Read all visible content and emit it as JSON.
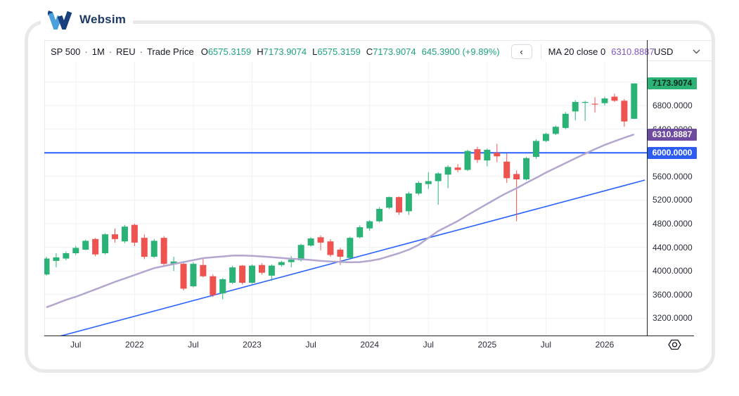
{
  "logo": {
    "text": "Websim"
  },
  "header": {
    "symbol": "SP 500",
    "separator": "·",
    "interval": "1M",
    "source": "REU",
    "price_type": "Trade Price",
    "o_label": "O",
    "o_value": "6575.3159",
    "h_label": "H",
    "h_value": "7173.9074",
    "l_label": "L",
    "l_value": "6575.3159",
    "c_label": "C",
    "c_value": "7173.9074",
    "change": "645.3900 (+9.89%)",
    "nav_button": "‹",
    "ma_label": "MA 20 close 0",
    "ma_value": "6310.8887"
  },
  "price_axis": {
    "currency": "USD",
    "ticks": [
      "6800.0000",
      "6400.0000",
      "6000.0000",
      "5600.0000",
      "5200.0000",
      "4800.0000",
      "4400.0000",
      "4000.0000",
      "3600.0000",
      "3200.0000"
    ],
    "badges": {
      "last": "7173.9074",
      "ma": "6310.8887",
      "level": "6000.0000"
    }
  },
  "time_axis": {
    "labels": [
      "Jul",
      "2022",
      "Jul",
      "2023",
      "Jul",
      "2024",
      "Jul",
      "2025",
      "Jul",
      "2026"
    ]
  },
  "colors": {
    "up": "#2bb377",
    "down": "#ef5350",
    "ma_line": "#b3a6cf",
    "ma_text": "#7e57c2",
    "blue_line": "#2962ff",
    "grid": "#eef1f6",
    "accent_badge_last": "#2bb377",
    "accent_badge_ma": "#6e4b9f",
    "accent_badge_level": "#2d5cf0"
  },
  "chart_data": {
    "type": "candlestick",
    "title": "SP 500 · 1M · REU · Trade Price with MA 20",
    "interval": "1M",
    "x_start": "2021-04",
    "x_end": "2026-04",
    "ylim": [
      3000,
      7400
    ],
    "grid": true,
    "price_gridlines": [
      3200,
      3600,
      4000,
      4400,
      4800,
      5200,
      5600,
      6000,
      6400,
      6800,
      7200
    ],
    "time_tick_indices": [
      3,
      9,
      15,
      21,
      27,
      33,
      39,
      45,
      51,
      57
    ],
    "time_tick_labels": [
      "Jul",
      "2022",
      "Jul",
      "2023",
      "Jul",
      "2024",
      "Jul",
      "2025",
      "Jul",
      "2026"
    ],
    "horizontal_level": 6000,
    "trendline": {
      "from_index": 0.3,
      "from_price": 2848,
      "to_index": 61.1,
      "to_price": 5538
    },
    "ma20": [
      3384,
      3447,
      3510,
      3562,
      3625,
      3688,
      3752,
      3815,
      3872,
      3931,
      3990,
      4048,
      4083,
      4117,
      4150,
      4183,
      4217,
      4231,
      4245,
      4260,
      4262,
      4255,
      4245,
      4233,
      4220,
      4206,
      4199,
      4186,
      4170,
      4160,
      4152,
      4146,
      4150,
      4170,
      4200,
      4250,
      4300,
      4360,
      4440,
      4560,
      4675,
      4760,
      4845,
      4945,
      5040,
      5135,
      5230,
      5320,
      5400,
      5490,
      5575,
      5665,
      5745,
      5825,
      5905,
      5985,
      6060,
      6133,
      6195,
      6255,
      6311
    ],
    "candles_ohlc": [
      [
        3940,
        4240,
        3920,
        4210
      ],
      [
        4170,
        4300,
        4060,
        4230
      ],
      [
        4210,
        4330,
        4180,
        4300
      ],
      [
        4300,
        4420,
        4270,
        4390
      ],
      [
        4360,
        4530,
        4350,
        4510
      ],
      [
        4540,
        4560,
        4250,
        4280
      ],
      [
        4300,
        4640,
        4280,
        4620
      ],
      [
        4620,
        4720,
        4480,
        4540
      ],
      [
        4500,
        4780,
        4470,
        4750
      ],
      [
        4780,
        4800,
        4420,
        4480
      ],
      [
        4560,
        4620,
        4200,
        4240
      ],
      [
        4240,
        4540,
        4220,
        4510
      ],
      [
        4560,
        4590,
        4090,
        4120
      ],
      [
        4120,
        4240,
        4000,
        4160
      ],
      [
        4120,
        4160,
        3670,
        3700
      ],
      [
        3740,
        4150,
        3720,
        4120
      ],
      [
        4100,
        4200,
        3890,
        3910
      ],
      [
        3910,
        3940,
        3560,
        3590
      ],
      [
        3620,
        3880,
        3520,
        3860
      ],
      [
        3800,
        4090,
        3780,
        4060
      ],
      [
        4090,
        4100,
        3770,
        3800
      ],
      [
        3800,
        4110,
        3780,
        4090
      ],
      [
        4100,
        4130,
        3940,
        3970
      ],
      [
        3920,
        4110,
        3830,
        4090
      ],
      [
        4100,
        4170,
        4070,
        4150
      ],
      [
        4150,
        4250,
        4060,
        4190
      ],
      [
        4180,
        4460,
        4160,
        4440
      ],
      [
        4430,
        4570,
        4410,
        4550
      ],
      [
        4570,
        4600,
        4350,
        4480
      ],
      [
        4500,
        4540,
        4240,
        4270
      ],
      [
        4360,
        4390,
        4100,
        4240
      ],
      [
        4220,
        4580,
        4200,
        4560
      ],
      [
        4570,
        4770,
        4550,
        4740
      ],
      [
        4720,
        4860,
        4680,
        4840
      ],
      [
        4840,
        5080,
        4820,
        5050
      ],
      [
        5070,
        5260,
        5050,
        5250
      ],
      [
        5250,
        5260,
        4950,
        4990
      ],
      [
        5010,
        5340,
        4950,
        5310
      ],
      [
        5310,
        5520,
        5280,
        5490
      ],
      [
        5470,
        5670,
        5390,
        5520
      ],
      [
        5520,
        5670,
        5120,
        5650
      ],
      [
        5630,
        5790,
        5400,
        5760
      ],
      [
        5750,
        5810,
        5670,
        5710
      ],
      [
        5710,
        6050,
        5690,
        6030
      ],
      [
        6060,
        6100,
        5830,
        5880
      ],
      [
        5870,
        6070,
        5770,
        6050
      ],
      [
        6000,
        6150,
        5840,
        5940
      ],
      [
        5850,
        5990,
        5490,
        5570
      ],
      [
        5640,
        5700,
        4840,
        5550
      ],
      [
        5550,
        5930,
        5530,
        5910
      ],
      [
        5930,
        6230,
        5900,
        6200
      ],
      [
        6200,
        6340,
        6180,
        6320
      ],
      [
        6320,
        6460,
        6300,
        6440
      ],
      [
        6420,
        6690,
        6400,
        6660
      ],
      [
        6700,
        6890,
        6550,
        6860
      ],
      [
        6850,
        6880,
        6540,
        6860
      ],
      [
        6830,
        6940,
        6680,
        6820
      ],
      [
        6840,
        6950,
        6800,
        6920
      ],
      [
        6950,
        7000,
        6860,
        6880
      ],
      [
        6880,
        6910,
        6440,
        6530
      ],
      [
        6575.3159,
        7173.9074,
        6575.3159,
        7173.9074
      ]
    ]
  }
}
